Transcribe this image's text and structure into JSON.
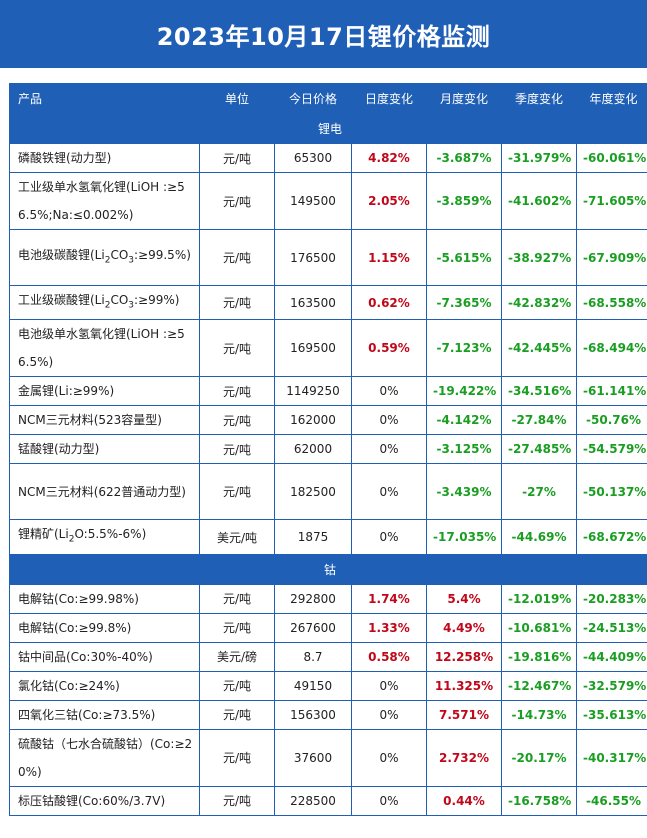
{
  "title": "2023年10月17日锂价格监测",
  "headers": {
    "product": "产品",
    "unit": "单位",
    "price": "今日价格",
    "daily": "日度变化",
    "monthly": "月度变化",
    "quarterly": "季度变化",
    "yearly": "年度变化"
  },
  "sections": [
    {
      "name": "锂电",
      "rows": [
        {
          "product": "磷酸铁锂(动力型)",
          "unit": "元/吨",
          "price": "65300",
          "daily": "4.82%",
          "monthly": "-3.687%",
          "quarterly": "-31.979%",
          "yearly": "-60.061%"
        },
        {
          "product": "工业级单水氢氧化锂(LiOH :≥56.5%;Na:≤0.002%)",
          "unit": "元/吨",
          "price": "149500",
          "daily": "2.05%",
          "monthly": "-3.859%",
          "quarterly": "-41.602%",
          "yearly": "-71.605%"
        },
        {
          "product_pre": "电池级碳酸锂(Li",
          "product_sub": "2",
          "product_post": "CO",
          "product_sub2": "3",
          "product_end": ":≥99.5%)",
          "unit": "元/吨",
          "price": "176500",
          "daily": "1.15%",
          "monthly": "-5.615%",
          "quarterly": "-38.927%",
          "yearly": "-67.909%"
        },
        {
          "product_pre": "工业级碳酸锂(Li",
          "product_sub": "2",
          "product_post": "CO",
          "product_sub2": "3",
          "product_end": ":≥99%)",
          "unit": "元/吨",
          "price": "163500",
          "daily": "0.62%",
          "monthly": "-7.365%",
          "quarterly": "-42.832%",
          "yearly": "-68.558%"
        },
        {
          "product": "电池级单水氢氧化锂(LiOH :≥56.5%)",
          "unit": "元/吨",
          "price": "169500",
          "daily": "0.59%",
          "monthly": "-7.123%",
          "quarterly": "-42.445%",
          "yearly": "-68.494%"
        },
        {
          "product": "金属锂(Li:≥99%)",
          "unit": "元/吨",
          "price": "1149250",
          "daily": "0%",
          "monthly": "-19.422%",
          "quarterly": "-34.516%",
          "yearly": "-61.141%"
        },
        {
          "product": "NCM三元材料(523容量型)",
          "unit": "元/吨",
          "price": "162000",
          "daily": "0%",
          "monthly": "-4.142%",
          "quarterly": "-27.84%",
          "yearly": "-50.76%"
        },
        {
          "product": "锰酸锂(动力型)",
          "unit": "元/吨",
          "price": "62000",
          "daily": "0%",
          "monthly": "-3.125%",
          "quarterly": "-27.485%",
          "yearly": "-54.579%"
        },
        {
          "product": "NCM三元材料(622普通动力型)",
          "unit": "元/吨",
          "price": "182500",
          "daily": "0%",
          "monthly": "-3.439%",
          "quarterly": "-27%",
          "yearly": "-50.137%"
        },
        {
          "product_pre": "锂精矿(Li",
          "product_sub": "2",
          "product_post": "O:5.5%-6%)",
          "product_sub2": "",
          "product_end": "",
          "unit": "美元/吨",
          "price": "1875",
          "daily": "0%",
          "monthly": "-17.035%",
          "quarterly": "-44.69%",
          "yearly": "-68.672%"
        }
      ]
    },
    {
      "name": "钴",
      "rows": [
        {
          "product": "电解钴(Co:≥99.98%)",
          "unit": "元/吨",
          "price": "292800",
          "daily": "1.74%",
          "monthly": "5.4%",
          "quarterly": "-12.019%",
          "yearly": "-20.283%"
        },
        {
          "product": "电解钴(Co:≥99.8%)",
          "unit": "元/吨",
          "price": "267600",
          "daily": "1.33%",
          "monthly": "4.49%",
          "quarterly": "-10.681%",
          "yearly": "-24.513%"
        },
        {
          "product": "钴中间品(Co:30%-40%)",
          "unit": "美元/磅",
          "price": "8.7",
          "daily": "0.58%",
          "monthly": "12.258%",
          "quarterly": "-19.816%",
          "yearly": "-44.409%"
        },
        {
          "product": "氯化钴(Co:≥24%)",
          "unit": "元/吨",
          "price": "49150",
          "daily": "0%",
          "monthly": "11.325%",
          "quarterly": "-12.467%",
          "yearly": "-32.579%"
        },
        {
          "product": "四氧化三钴(Co:≥73.5%)",
          "unit": "元/吨",
          "price": "156300",
          "daily": "0%",
          "monthly": "7.571%",
          "quarterly": "-14.73%",
          "yearly": "-35.613%"
        },
        {
          "product": "硫酸钴（七水合硫酸钴）(Co:≥20%)",
          "unit": "元/吨",
          "price": "37600",
          "daily": "0%",
          "monthly": "2.732%",
          "quarterly": "-20.17%",
          "yearly": "-40.317%"
        },
        {
          "product": "标压钴酸锂(Co:60%/3.7V)",
          "unit": "元/吨",
          "price": "228500",
          "daily": "0%",
          "monthly": "0.44%",
          "quarterly": "-16.758%",
          "yearly": "-46.55%"
        }
      ]
    }
  ]
}
